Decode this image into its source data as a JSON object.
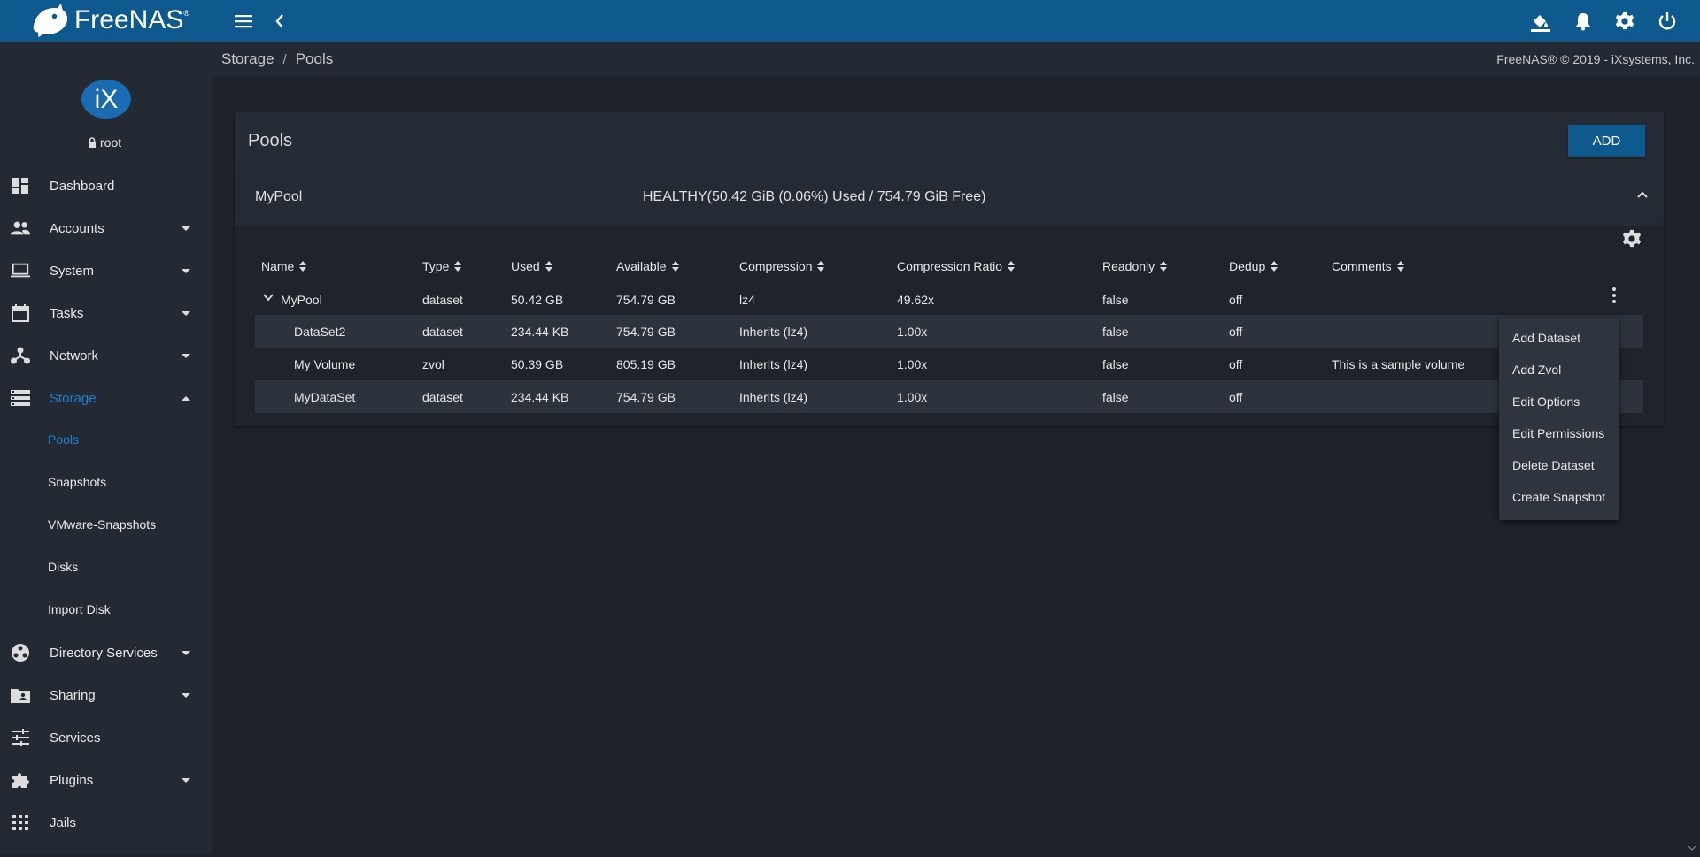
{
  "app": {
    "name": "FreeNAS",
    "copyright": "FreeNAS® © 2019 - iXsystems, Inc."
  },
  "breadcrumb": [
    "Storage",
    "Pools"
  ],
  "user": {
    "name": "root",
    "avatar_text": "iX"
  },
  "sidebar": {
    "items": [
      {
        "label": "Dashboard",
        "icon": "dashboard-icon"
      },
      {
        "label": "Accounts",
        "icon": "people-icon"
      },
      {
        "label": "System",
        "icon": "laptop-icon"
      },
      {
        "label": "Tasks",
        "icon": "calendar-icon"
      },
      {
        "label": "Network",
        "icon": "network-icon"
      },
      {
        "label": "Storage",
        "icon": "storage-icon"
      },
      {
        "label": "Directory Services",
        "icon": "directory-icon"
      },
      {
        "label": "Sharing",
        "icon": "folder-shared-icon"
      },
      {
        "label": "Services",
        "icon": "tune-icon"
      },
      {
        "label": "Plugins",
        "icon": "puzzle-icon"
      },
      {
        "label": "Jails",
        "icon": "apps-grid-icon"
      }
    ],
    "storage_sub": [
      "Pools",
      "Snapshots",
      "VMware-Snapshots",
      "Disks",
      "Import Disk"
    ]
  },
  "card": {
    "title": "Pools",
    "add_label": "ADD",
    "pool_name": "MyPool",
    "pool_status": "HEALTHY(50.42 GiB (0.06%) Used / 754.79 GiB Free)"
  },
  "table": {
    "headers": [
      "Name",
      "Type",
      "Used",
      "Available",
      "Compression",
      "Compression Ratio",
      "Readonly",
      "Dedup",
      "Comments"
    ],
    "rows": [
      [
        "MyPool",
        "dataset",
        "50.42 GB",
        "754.79 GB",
        "lz4",
        "49.62x",
        "false",
        "off",
        ""
      ],
      [
        "DataSet2",
        "dataset",
        "234.44 KB",
        "754.79 GB",
        "Inherits (lz4)",
        "1.00x",
        "false",
        "off",
        ""
      ],
      [
        "My Volume",
        "zvol",
        "50.39 GB",
        "805.19 GB",
        "Inherits (lz4)",
        "1.00x",
        "false",
        "off",
        "This is a sample volume"
      ],
      [
        "MyDataSet",
        "dataset",
        "234.44 KB",
        "754.79 GB",
        "Inherits (lz4)",
        "1.00x",
        "false",
        "off",
        ""
      ]
    ]
  },
  "menu": {
    "items": [
      "Add Dataset",
      "Add Zvol",
      "Edit Options",
      "Edit Permissions",
      "Delete Dataset",
      "Create Snapshot"
    ]
  },
  "colors": {
    "topbar": "#0e5a8e",
    "active": "#1f7fd0"
  }
}
